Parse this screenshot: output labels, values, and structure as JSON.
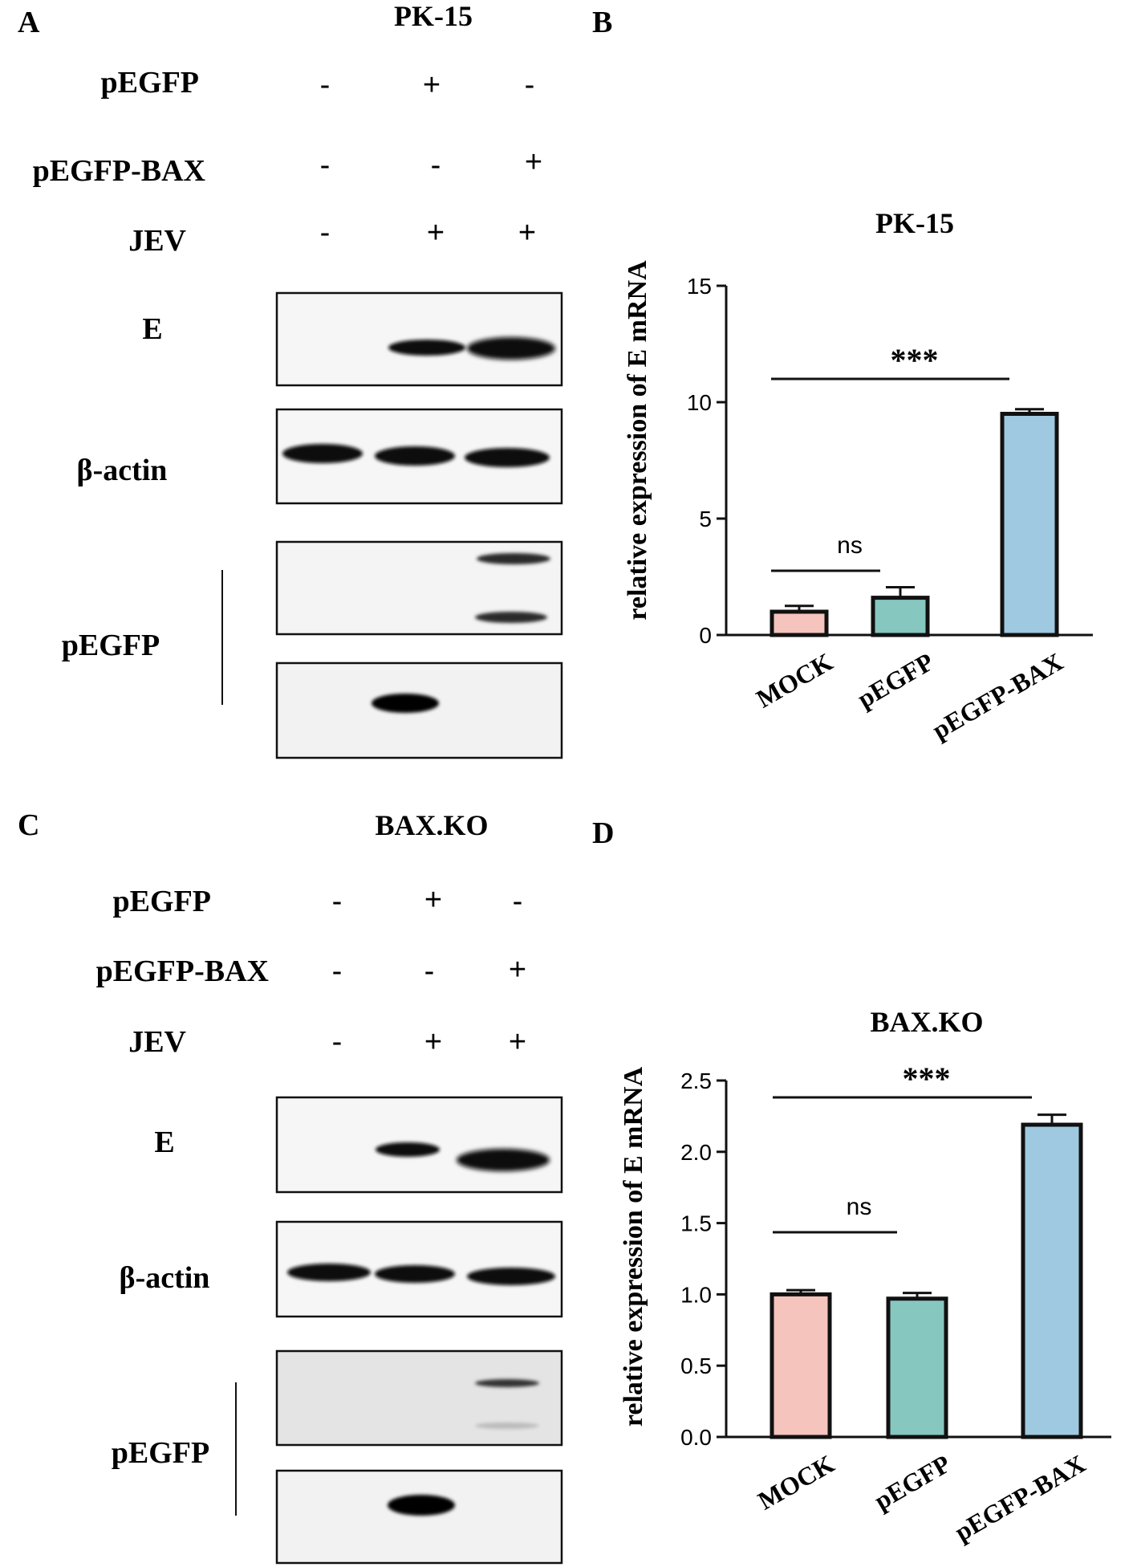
{
  "panel_a": {
    "letter": "A",
    "cell_line": "PK-15",
    "conditions": [
      {
        "label": "pEGFP",
        "signs": [
          "-",
          "+",
          "-"
        ]
      },
      {
        "label": "pEGFP-BAX",
        "signs": [
          "-",
          "-",
          "+"
        ]
      },
      {
        "label": "JEV",
        "signs": [
          "-",
          "+",
          "+"
        ]
      }
    ],
    "blots": {
      "e_label": "E",
      "actin_label": "β-actin",
      "pegfp_label": "pEGFP"
    }
  },
  "panel_c": {
    "letter": "C",
    "cell_line": "BAX.KO",
    "conditions": [
      {
        "label": "pEGFP",
        "signs": [
          "-",
          "+",
          "-"
        ]
      },
      {
        "label": "pEGFP-BAX",
        "signs": [
          "-",
          "-",
          "+"
        ]
      },
      {
        "label": "JEV",
        "signs": [
          "-",
          "+",
          "+"
        ]
      }
    ],
    "blots": {
      "e_label": "E",
      "actin_label": "β-actin",
      "pegfp_label": "pEGFP"
    }
  },
  "panel_b": {
    "letter": "B"
  },
  "panel_d": {
    "letter": "D"
  },
  "colors": {
    "mock": "#f4c4bd",
    "pegfp": "#86c7bf",
    "pegfp_bax": "#9ec9e0",
    "outline": "#111111"
  },
  "chart_data": [
    {
      "type": "bar",
      "title": "PK-15",
      "ylabel": "relative expression of E mRNA",
      "categories": [
        "MOCK",
        "pEGFP",
        "pEGFP-BAX"
      ],
      "values": [
        1.0,
        1.6,
        9.5
      ],
      "errors": [
        0.25,
        0.45,
        0.2
      ],
      "ylim": [
        0,
        15
      ],
      "yticks": [
        "0",
        "5",
        "10",
        "15"
      ],
      "significance": [
        {
          "from": "MOCK",
          "to": "pEGFP",
          "label": "ns"
        },
        {
          "from": "MOCK",
          "to": "pEGFP-BAX",
          "label": "***"
        }
      ]
    },
    {
      "type": "bar",
      "title": "BAX.KO",
      "ylabel": "relative expression of E mRNA",
      "categories": [
        "MOCK",
        "pEGFP",
        "pEGFP-BAX"
      ],
      "values": [
        1.0,
        0.97,
        2.19
      ],
      "errors": [
        0.03,
        0.04,
        0.07
      ],
      "ylim": [
        0,
        2.5
      ],
      "yticks": [
        "0.0",
        "0.5",
        "1.0",
        "1.5",
        "2.0",
        "2.5"
      ],
      "significance": [
        {
          "from": "MOCK",
          "to": "pEGFP",
          "label": "ns"
        },
        {
          "from": "MOCK",
          "to": "pEGFP-BAX",
          "label": "***"
        }
      ]
    }
  ]
}
